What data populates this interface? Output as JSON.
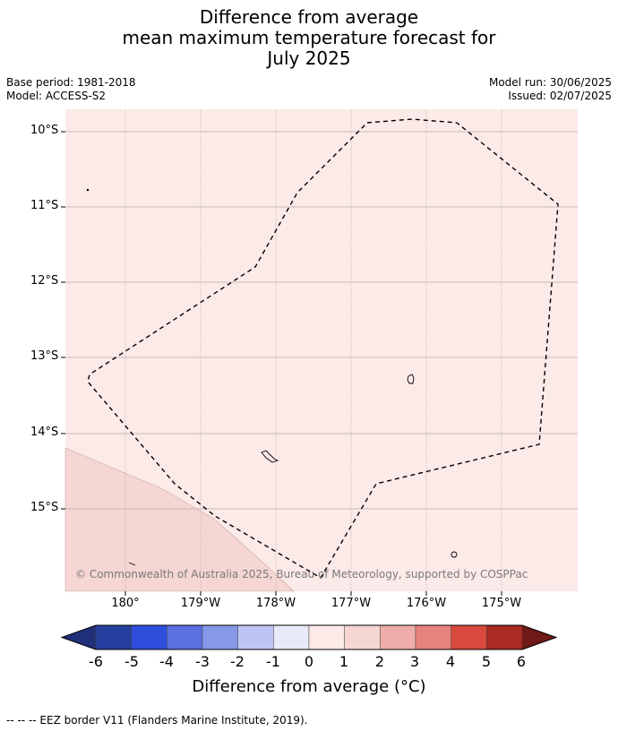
{
  "title": {
    "line1": "Difference from average",
    "line2": "mean maximum temperature forecast for",
    "line3": "July 2025"
  },
  "meta": {
    "base_period": "Base period: 1981-2018",
    "model": "Model: ACCESS-S2",
    "model_run": "Model run: 30/06/2025",
    "issued": "Issued: 02/07/2025"
  },
  "map": {
    "lat_labels": [
      "10°S",
      "11°S",
      "12°S",
      "13°S",
      "14°S",
      "15°S"
    ],
    "lon_labels": [
      "180°",
      "179°W",
      "178°W",
      "177°W",
      "176°W",
      "175°W"
    ],
    "copyright": "© Commonwealth of Australia 2025, Bureau of Meteorology, supported by COSPPac",
    "background_anomaly_class": "0 to 1",
    "sw_region_anomaly_class": "1 to 2",
    "colors": {
      "class_0_1": "#fbeae8",
      "class_1_2": "#f5d6d3",
      "grid": "#b9a8a8",
      "eez": "#000000"
    }
  },
  "colorbar": {
    "ticks": [
      "-6",
      "-5",
      "-4",
      "-3",
      "-2",
      "-1",
      "0",
      "1",
      "2",
      "3",
      "4",
      "5",
      "6"
    ],
    "colors": [
      "#20307a",
      "#253f9f",
      "#2e4fdc",
      "#5a70df",
      "#8898e8",
      "#bfc5f3",
      "#e8eaf9",
      "#fbeae8",
      "#f5d6d3",
      "#eeadab",
      "#e7827e",
      "#d94a3e",
      "#ab2a22",
      "#6e1a17"
    ],
    "label": "Difference from average (°C)"
  },
  "legend": {
    "text": "-- -- -- EEZ border V11 (Flanders Marine Institute, 2019)."
  }
}
